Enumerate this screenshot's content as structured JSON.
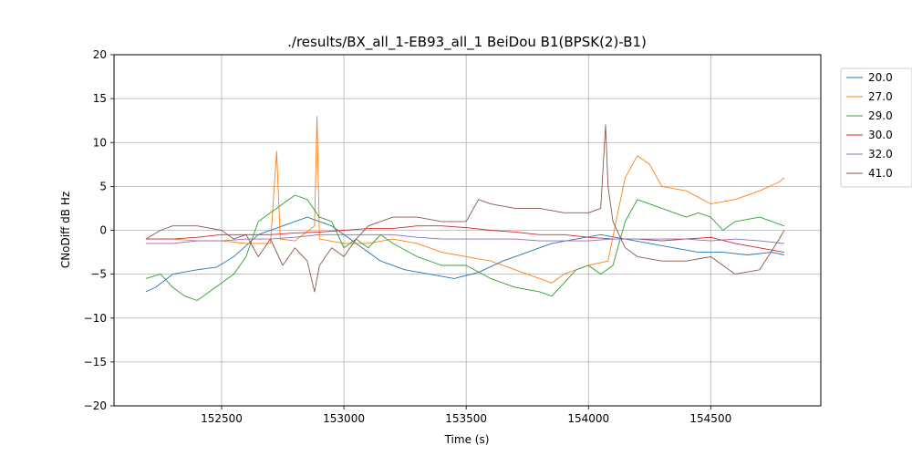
{
  "chart_data": {
    "type": "line",
    "title": "./results/BX_all_1-EB93_all_1 BeiDou B1(BPSK(2)-B1)",
    "xlabel": "Time (s)",
    "ylabel": "CNoDiff dB Hz",
    "xlim": [
      152060,
      154950
    ],
    "ylim": [
      -20,
      20
    ],
    "xticks": [
      152500,
      153000,
      153500,
      154000,
      154500
    ],
    "yticks": [
      -20,
      -15,
      -10,
      -5,
      0,
      5,
      10,
      15,
      20
    ],
    "grid": true,
    "legend_position": "outside-top-right",
    "series": [
      {
        "name": "20.0",
        "color": "#1f77b4",
        "x": [
          152190,
          152230,
          152300,
          152400,
          152480,
          152550,
          152650,
          152750,
          152850,
          152950,
          153050,
          153150,
          153250,
          153350,
          153450,
          153550,
          153650,
          153750,
          153850,
          153950,
          154050,
          154150,
          154250,
          154350,
          154450,
          154550,
          154650,
          154750,
          154800
        ],
        "y": [
          -7.0,
          -6.5,
          -5.0,
          -4.5,
          -4.2,
          -3.0,
          -0.5,
          0.5,
          1.5,
          0.5,
          -1.5,
          -3.5,
          -4.5,
          -5.0,
          -5.5,
          -4.8,
          -3.5,
          -2.5,
          -1.5,
          -1.0,
          -0.5,
          -1.0,
          -1.5,
          -2.0,
          -2.5,
          -2.5,
          -2.8,
          -2.5,
          -2.8
        ]
      },
      {
        "name": "27.0",
        "color": "#ff7f0e",
        "x": [
          152190,
          152300,
          152400,
          152500,
          152600,
          152700,
          152725,
          152740,
          152800,
          152880,
          152890,
          152900,
          153000,
          153100,
          153200,
          153300,
          153400,
          153500,
          153600,
          153700,
          153800,
          153850,
          153900,
          154000,
          154080,
          154120,
          154150,
          154200,
          154250,
          154300,
          154400,
          154500,
          154600,
          154700,
          154780,
          154800
        ],
        "y": [
          -1.0,
          -1.0,
          -1.2,
          -1.2,
          -1.5,
          -1.5,
          9.0,
          -1.0,
          -1.2,
          0.5,
          13.0,
          -1.0,
          -1.5,
          -1.5,
          -1.0,
          -1.5,
          -2.5,
          -3.0,
          -3.5,
          -4.5,
          -5.5,
          -6.0,
          -5.0,
          -4.0,
          -3.5,
          2.0,
          6.0,
          8.5,
          7.5,
          5.0,
          4.5,
          3.0,
          3.5,
          4.5,
          5.5,
          6.0
        ]
      },
      {
        "name": "29.0",
        "color": "#2ca02c",
        "x": [
          152190,
          152250,
          152300,
          152350,
          152400,
          152450,
          152500,
          152550,
          152600,
          152650,
          152700,
          152750,
          152800,
          152850,
          152900,
          152950,
          153000,
          153050,
          153100,
          153150,
          153200,
          153300,
          153400,
          153500,
          153600,
          153700,
          153800,
          153850,
          153900,
          153950,
          154000,
          154050,
          154100,
          154150,
          154200,
          154300,
          154400,
          154450,
          154500,
          154550,
          154600,
          154700,
          154800
        ],
        "y": [
          -5.5,
          -5.0,
          -6.5,
          -7.5,
          -8.0,
          -7.0,
          -6.0,
          -5.0,
          -3.0,
          1.0,
          2.0,
          3.0,
          4.0,
          3.5,
          1.5,
          1.0,
          -2.0,
          -1.0,
          -2.0,
          -0.5,
          -1.5,
          -3.0,
          -4.0,
          -4.0,
          -5.5,
          -6.5,
          -7.0,
          -7.5,
          -6.0,
          -4.5,
          -4.0,
          -5.0,
          -4.0,
          1.0,
          3.5,
          2.5,
          1.5,
          2.0,
          1.5,
          0.0,
          1.0,
          1.5,
          0.5
        ]
      },
      {
        "name": "30.0",
        "color": "#d62728",
        "x": [
          152190,
          152300,
          152400,
          152500,
          152600,
          152700,
          152800,
          152900,
          153000,
          153100,
          153200,
          153300,
          153400,
          153500,
          153600,
          153700,
          153800,
          153900,
          154000,
          154100,
          154200,
          154300,
          154400,
          154500,
          154600,
          154700,
          154800
        ],
        "y": [
          -1.0,
          -1.0,
          -0.8,
          -0.5,
          -0.5,
          -0.5,
          -0.3,
          -0.2,
          0.0,
          0.2,
          0.2,
          0.5,
          0.5,
          0.3,
          0.0,
          -0.2,
          -0.5,
          -0.5,
          -0.8,
          -1.0,
          -1.0,
          -1.2,
          -1.0,
          -0.8,
          -1.5,
          -2.0,
          -2.5
        ]
      },
      {
        "name": "32.0",
        "color": "#9467bd",
        "x": [
          152190,
          152300,
          152400,
          152500,
          152600,
          152700,
          152800,
          152900,
          153000,
          153100,
          153200,
          153300,
          153400,
          153500,
          153600,
          153700,
          153800,
          153900,
          154000,
          154100,
          154200,
          154300,
          154400,
          154500,
          154600,
          154700,
          154800
        ],
        "y": [
          -1.5,
          -1.5,
          -1.2,
          -1.2,
          -1.0,
          -1.0,
          -0.8,
          -0.5,
          -0.5,
          -0.5,
          -0.5,
          -0.8,
          -1.0,
          -1.0,
          -1.0,
          -1.0,
          -1.2,
          -1.2,
          -1.2,
          -1.0,
          -1.0,
          -1.0,
          -1.0,
          -1.2,
          -1.0,
          -1.2,
          -1.5
        ]
      },
      {
        "name": "41.0",
        "color": "#8c564b",
        "x": [
          152190,
          152250,
          152300,
          152400,
          152500,
          152550,
          152600,
          152650,
          152700,
          152750,
          152800,
          152850,
          152880,
          152900,
          152950,
          153000,
          153050,
          153100,
          153200,
          153300,
          153400,
          153500,
          153550,
          153600,
          153700,
          153800,
          153900,
          154000,
          154050,
          154070,
          154080,
          154100,
          154150,
          154200,
          154300,
          154400,
          154500,
          154600,
          154700,
          154780,
          154800
        ],
        "y": [
          -1.0,
          0.0,
          0.5,
          0.5,
          0.0,
          -1.0,
          -0.5,
          -3.0,
          -1.0,
          -4.0,
          -2.0,
          -3.5,
          -7.0,
          -4.0,
          -2.0,
          -3.0,
          -1.0,
          0.5,
          1.5,
          1.5,
          1.0,
          1.0,
          3.5,
          3.0,
          2.5,
          2.5,
          2.0,
          2.0,
          2.5,
          12.0,
          5.0,
          1.0,
          -2.0,
          -3.0,
          -3.5,
          -3.5,
          -3.0,
          -5.0,
          -4.5,
          -1.0,
          0.0
        ]
      }
    ]
  }
}
